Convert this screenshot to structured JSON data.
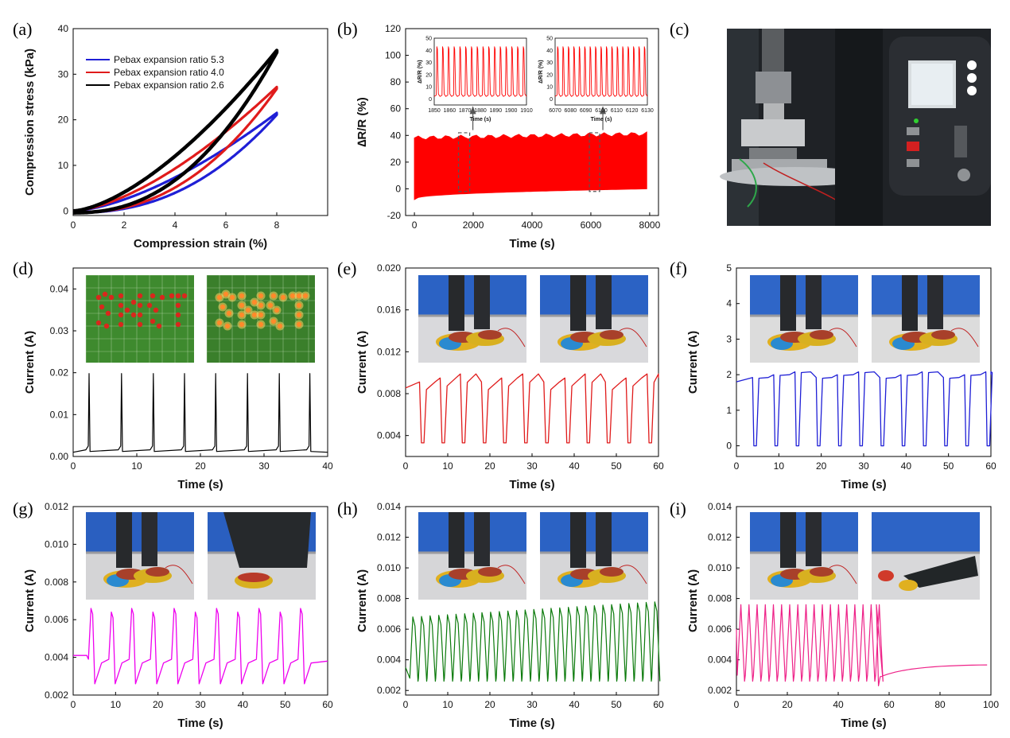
{
  "panel_labels": [
    "(a)",
    "(b)",
    "(c)",
    "(d)",
    "(e)",
    "(f)",
    "(g)",
    "(h)",
    "(i)"
  ],
  "chart_data": [
    {
      "id": "a",
      "type": "line",
      "xlabel": "Compression strain (%)",
      "ylabel": "Compression stress (kPa)",
      "xlim": [
        0,
        10
      ],
      "ylim": [
        -1,
        40
      ],
      "xticks": [
        0,
        2,
        4,
        6,
        8
      ],
      "yticks": [
        0,
        10,
        20,
        30,
        40
      ],
      "legend_position": "top-left",
      "series": [
        {
          "name": "Pebax expansion ratio 5.3",
          "color": "#1f1fd6",
          "max_strain": 8,
          "max_stress": 21.5
        },
        {
          "name": "Pebax expansion ratio 4.0",
          "color": "#e01b1b",
          "max_strain": 8,
          "max_stress": 27.2
        },
        {
          "name": "Pebax expansion ratio 2.6",
          "color": "#000000",
          "max_strain": 8,
          "max_stress": 35.2
        }
      ]
    },
    {
      "id": "b",
      "type": "line",
      "xlabel": "Time (s)",
      "ylabel": "∆R/R (%)",
      "xlim": [
        -300,
        8300
      ],
      "ylim": [
        -20,
        120
      ],
      "xticks": [
        0,
        2000,
        4000,
        6000,
        8000
      ],
      "yticks": [
        -20,
        0,
        20,
        40,
        60,
        80,
        100,
        120
      ],
      "color": "#ff0000",
      "band": {
        "x_start": 0,
        "x_end": 7900,
        "low_start": -8,
        "low_end": 0,
        "high_start": 38,
        "high_end": 41
      },
      "highlight_windows": [
        [
          1500,
          1880
        ],
        [
          5950,
          6300
        ]
      ],
      "insets": [
        {
          "xlim": [
            1850,
            1910
          ],
          "ylim": [
            -5,
            50
          ],
          "xticks": [
            1850,
            1860,
            1870,
            1880,
            1890,
            1900,
            1910
          ],
          "yticks": [
            0,
            10,
            20,
            30,
            40,
            50
          ],
          "xlabel": "Time (s)",
          "ylabel": "∆R/R (%)",
          "peaks": 16,
          "low": 2,
          "high": 43
        },
        {
          "xlim": [
            6070,
            6130
          ],
          "ylim": [
            -5,
            50
          ],
          "xticks": [
            6070,
            6080,
            6090,
            6100,
            6110,
            6120,
            6130
          ],
          "yticks": [
            0,
            10,
            20,
            30,
            40,
            50
          ],
          "xlabel": "Time (s)",
          "ylabel": "∆R/R (%)",
          "peaks": 17,
          "low": 2,
          "high": 43
        }
      ]
    },
    {
      "id": "d",
      "type": "line",
      "color": "#000000",
      "xlabel": "Time (s)",
      "ylabel": "Current (A)",
      "xlim": [
        0,
        40
      ],
      "ylim": [
        0,
        0.045
      ],
      "xticks": [
        0,
        10,
        20,
        30,
        40
      ],
      "yticks": [
        0.0,
        0.01,
        0.02,
        0.03,
        0.04
      ],
      "ytick_labels": [
        "0.00",
        "0.01",
        "0.02",
        "0.03",
        "0.04"
      ],
      "baseline": 0.001,
      "spike_peak": 0.0198,
      "spike_times": [
        2.5,
        7.6,
        12.6,
        17.5,
        22.4,
        27.4,
        32.4,
        37.2
      ]
    },
    {
      "id": "e",
      "type": "line",
      "color": "#e01b1b",
      "xlabel": "Time (s)",
      "ylabel": "Current (A)",
      "xlim": [
        0,
        60
      ],
      "ylim": [
        0.002,
        0.02
      ],
      "xticks": [
        0,
        10,
        20,
        30,
        40,
        50,
        60
      ],
      "yticks": [
        0.004,
        0.008,
        0.012,
        0.016,
        0.02
      ],
      "ytick_labels": [
        "0.004",
        "0.008",
        "0.012",
        "0.016",
        "0.020"
      ],
      "high": 0.0095,
      "low": 0.0033,
      "dip_times": [
        3.5,
        8.4,
        13.2,
        18.2,
        23.0,
        28.0,
        33.0,
        38.0,
        42.8,
        47.6,
        52.5,
        57.5
      ]
    },
    {
      "id": "f",
      "type": "line",
      "color": "#1f1fd6",
      "xlabel": "Time (s)",
      "ylabel": "Current (A)",
      "xlim": [
        0,
        60
      ],
      "ylim": [
        -0.3,
        5
      ],
      "xticks": [
        0,
        10,
        20,
        30,
        40,
        50,
        60
      ],
      "yticks": [
        0,
        1,
        2,
        3,
        4,
        5
      ],
      "ytick_labels": [
        "0",
        "1",
        "2",
        "3",
        "4",
        "5"
      ],
      "high": 2.0,
      "low": 0.0,
      "dip_times": [
        4.0,
        9.0,
        14.0,
        19.0,
        24.0,
        29.0,
        34.0,
        39.0,
        44.0,
        49.0,
        54.0,
        59.0
      ]
    },
    {
      "id": "g",
      "type": "line",
      "color": "#ee00ee",
      "xlabel": "Time (s)",
      "ylabel": "Current (A)",
      "xlim": [
        0,
        60
      ],
      "ylim": [
        0.002,
        0.012
      ],
      "xticks": [
        0,
        10,
        20,
        30,
        40,
        50,
        60
      ],
      "yticks": [
        0.002,
        0.004,
        0.006,
        0.008,
        0.01,
        0.012
      ],
      "ytick_labels": [
        "0.002",
        "0.004",
        "0.006",
        "0.008",
        "0.010",
        "0.012"
      ],
      "base": 0.0041,
      "peak": 0.0066,
      "low": 0.0026,
      "peak_times": [
        4.2,
        9.0,
        13.8,
        18.8,
        23.8,
        28.8,
        33.8,
        38.8,
        43.8,
        48.8,
        53.6
      ]
    },
    {
      "id": "h",
      "type": "line",
      "color": "#0b7a0b",
      "xlabel": "Time (s)",
      "ylabel": "Current (A)",
      "xlim": [
        0,
        60
      ],
      "ylim": [
        0.0017,
        0.014
      ],
      "xticks": [
        0,
        10,
        20,
        30,
        40,
        50,
        60
      ],
      "yticks": [
        0.002,
        0.004,
        0.006,
        0.008,
        0.01,
        0.012,
        0.014
      ],
      "ytick_labels": [
        "0.002",
        "0.004",
        "0.006",
        "0.008",
        "0.010",
        "0.012",
        "0.014"
      ],
      "high_start": 0.0068,
      "high_end": 0.0078,
      "low": 0.0026,
      "period": 2.05,
      "t_start": 1.0,
      "t_end": 59.5
    },
    {
      "id": "i",
      "type": "line",
      "color": "#ee2288",
      "xlabel": "Time (s)",
      "ylabel": "Current (A)",
      "xlim": [
        0,
        100
      ],
      "ylim": [
        0.0017,
        0.014
      ],
      "xticks": [
        0,
        20,
        40,
        60,
        80,
        100
      ],
      "yticks": [
        0.002,
        0.004,
        0.006,
        0.008,
        0.01,
        0.012,
        0.014
      ],
      "ytick_labels": [
        "0.002",
        "0.004",
        "0.006",
        "0.008",
        "0.010",
        "0.012",
        "0.014"
      ],
      "high": 0.0076,
      "low": 0.0026,
      "period": 3.2,
      "osc_end": 55.0,
      "tail_start": 0.0028,
      "tail_end": 0.0037
    }
  ],
  "photos": {
    "d": [
      "led-array-off",
      "led-array-on"
    ],
    "e": [
      "shoe-foot-lifted",
      "shoe-foot-down"
    ],
    "f": [
      "shoe-step-down",
      "shoe-step-up"
    ],
    "g": [
      "standing-pose",
      "squatting-pose"
    ],
    "h": [
      "walking-left-foot",
      "walking-right-foot"
    ],
    "i": [
      "standing-legs",
      "fallen-person"
    ],
    "c": "compression-test-machine"
  },
  "colors": {
    "blue": "#1f1fd6",
    "red": "#e01b1b",
    "black": "#000000",
    "magenta": "#ee00ee",
    "green": "#0b7a0b",
    "pink": "#ee2288"
  }
}
